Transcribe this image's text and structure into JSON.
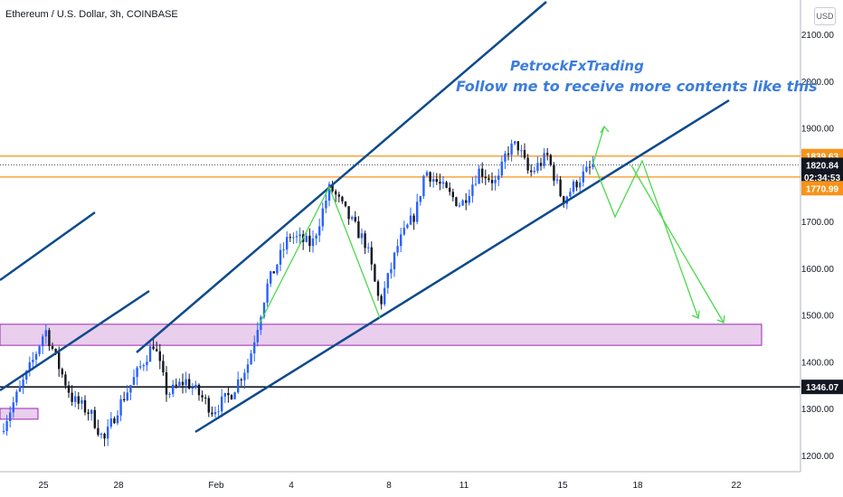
{
  "header": {
    "title": "Ethereum / U.S. Dollar, 3h, COINBASE",
    "currency_button": "USD"
  },
  "annotation": {
    "line1": "PetrockFxTrading",
    "line2": "Follow me to receive more contents like this"
  },
  "chart_data": {
    "type": "candlestick",
    "title": "Ethereum / U.S. Dollar, 3h, COINBASE",
    "ylim": [
      1160,
      2170
    ],
    "y_ticks": [
      "2100.00",
      "2000.00",
      "1900.00",
      "1800.00",
      "1700.00",
      "1600.00",
      "1500.00",
      "1400.00",
      "1300.00",
      "1200.00"
    ],
    "x_ticks": [
      "25",
      "28",
      "Feb",
      "4",
      "8",
      "11",
      "15",
      "18",
      "22"
    ],
    "grid": false,
    "price_labels": [
      {
        "text": "1839.63",
        "value": 1839.63,
        "color": "#f7931a"
      },
      {
        "text": "1820.84",
        "value": 1820.84,
        "color": "#131722"
      },
      {
        "text": "02:34:53",
        "value": 1795,
        "color": "#131722"
      },
      {
        "text": "1770.99",
        "value": 1770.99,
        "color": "#f7931a"
      },
      {
        "text": "1346.07",
        "value": 1346.07,
        "color": "#131722"
      }
    ],
    "horizontal_levels": [
      {
        "value": 1839.63,
        "color": "#f7931a"
      },
      {
        "value": 1795,
        "color": "#f7931a"
      },
      {
        "value": 1346.07,
        "color": "#131722"
      }
    ],
    "current_price": 1820.84,
    "zones": [
      {
        "y_low": 1435,
        "y_high": 1480,
        "color": "#9c27b0"
      },
      {
        "y_low": 1277,
        "y_high": 1300,
        "color": "#9c27b0"
      }
    ],
    "colors": {
      "up": "#2962ff",
      "down": "#131722",
      "trendline": "#0d4a8c",
      "projection": "#4cd94c"
    }
  }
}
